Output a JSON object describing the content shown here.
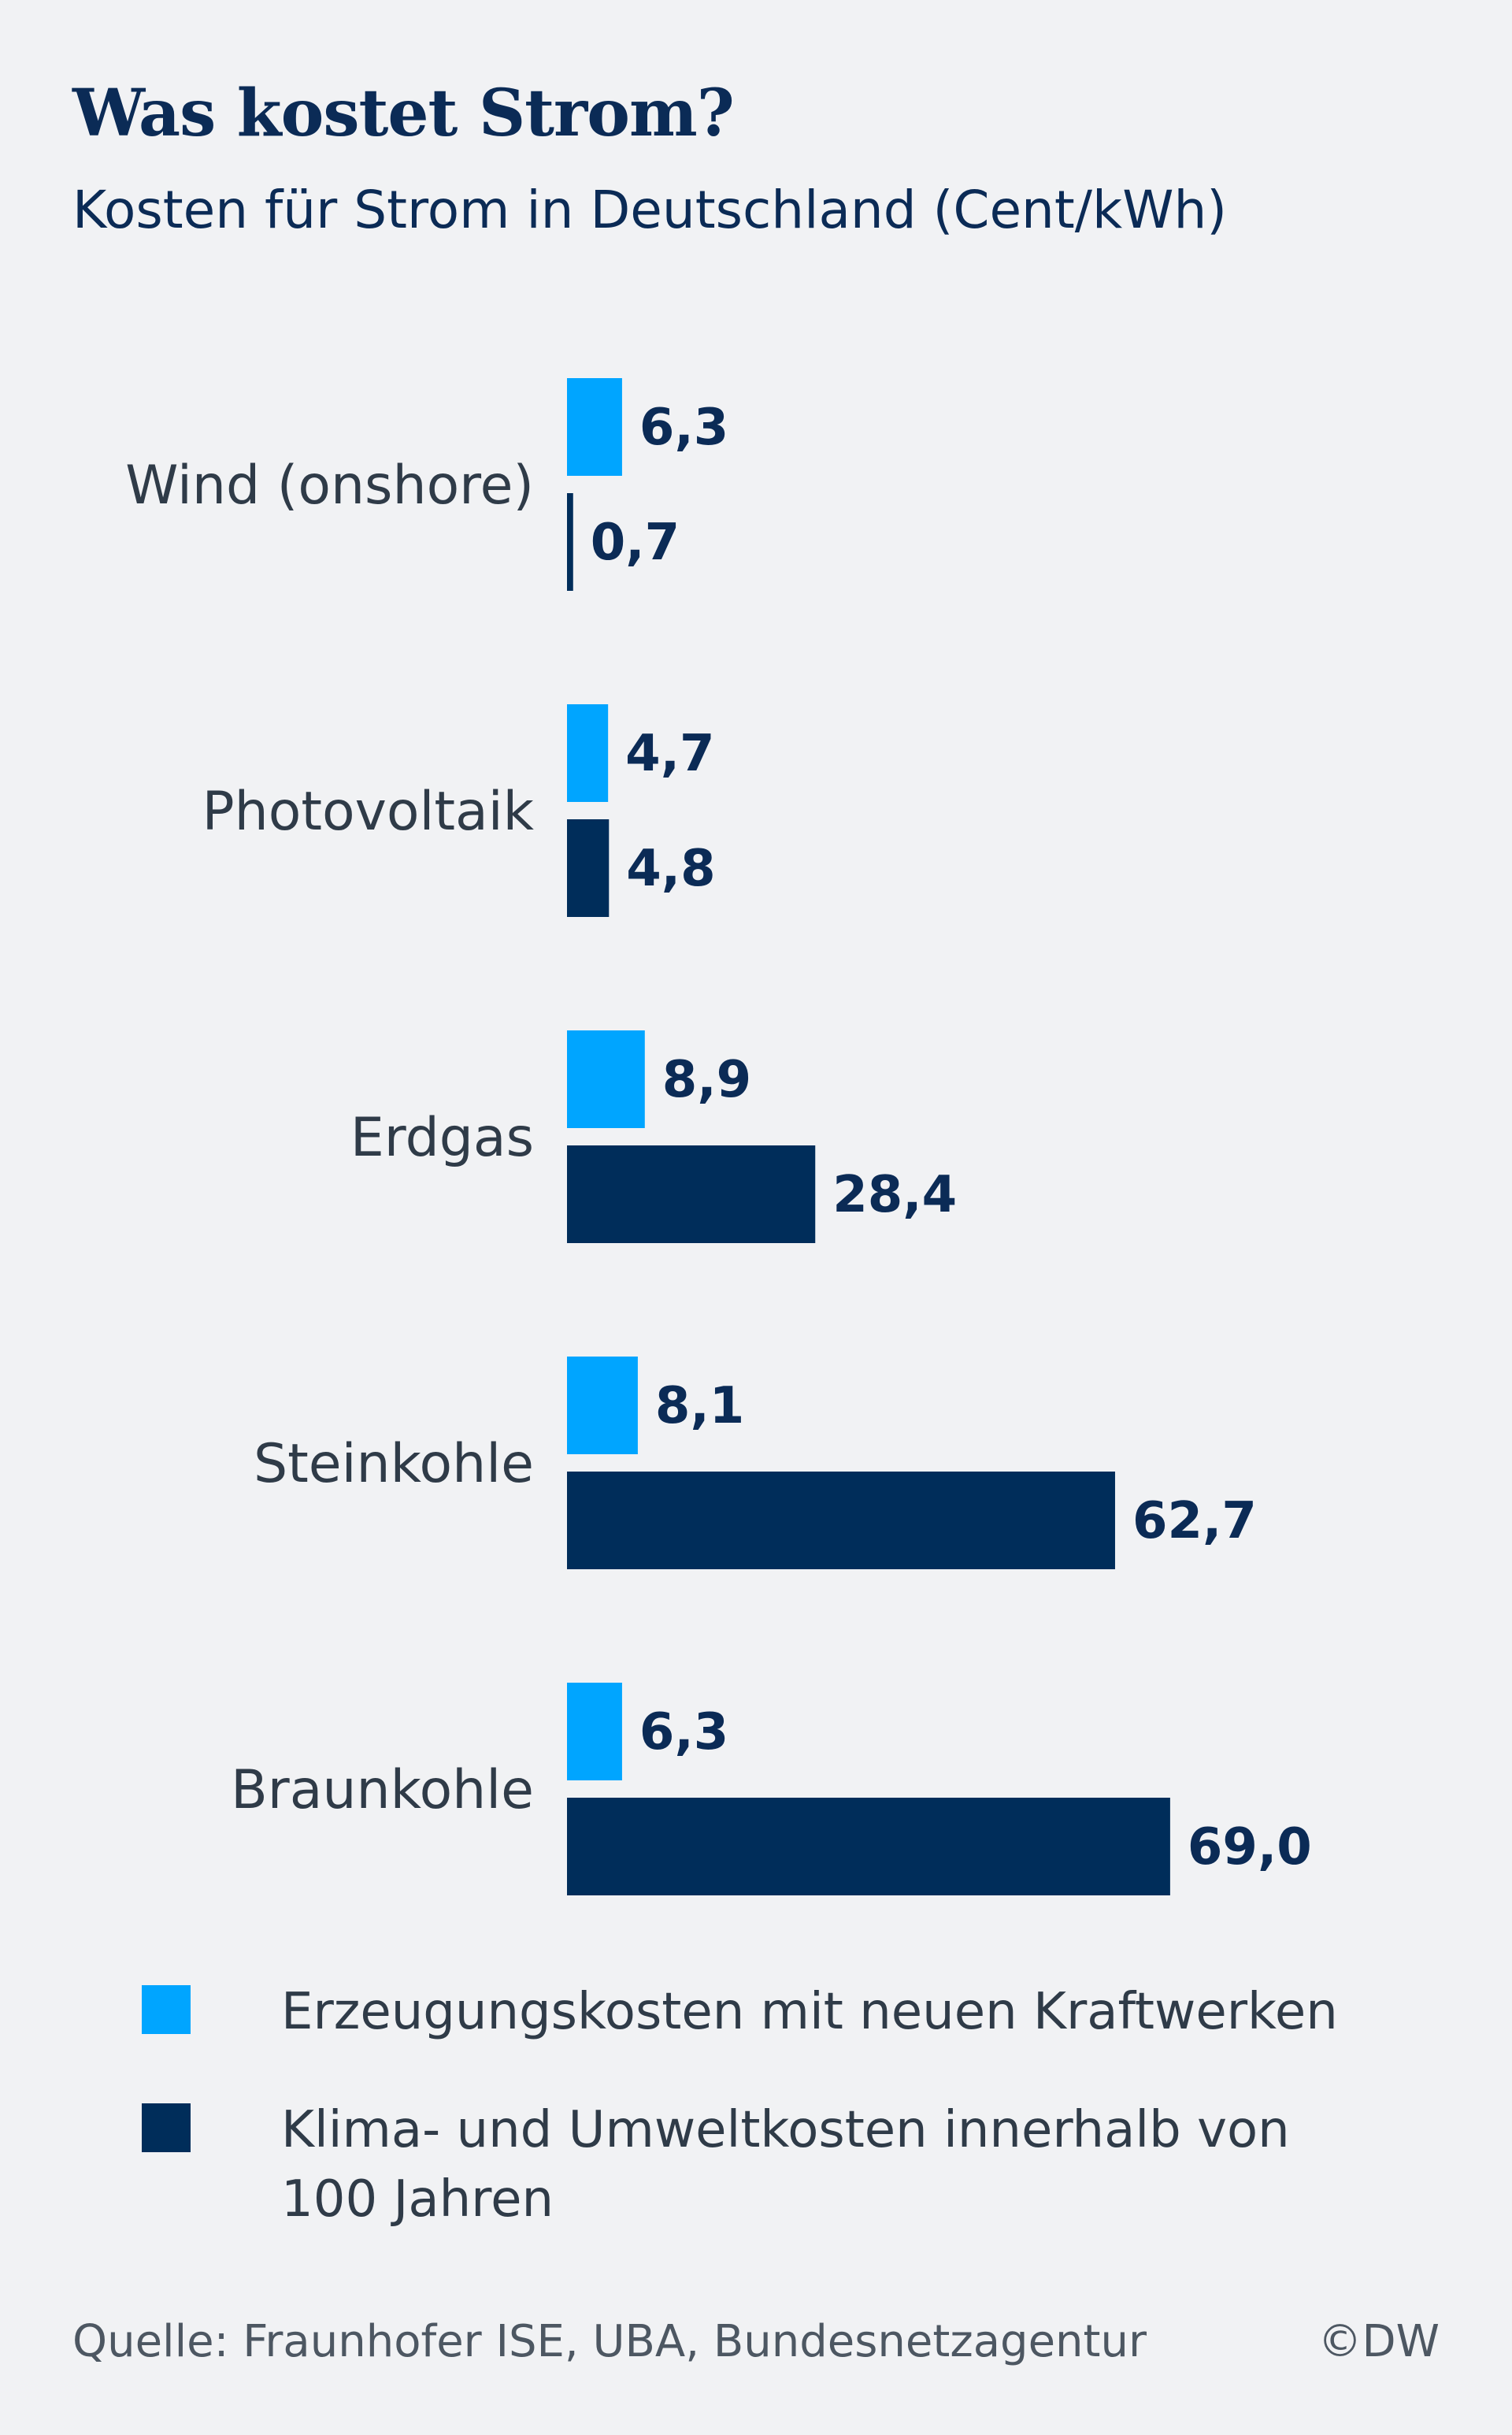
{
  "title": "Was kostet Strom?",
  "subtitle": "Kosten für Strom in Deutschland (Cent/kWh)",
  "colors": {
    "light": "#00a5ff",
    "dark": "#002d5a",
    "text_dark": "#0b2b56",
    "background": "#f1f2f4"
  },
  "chart_data": {
    "type": "bar",
    "orientation": "horizontal",
    "title": "Was kostet Strom?",
    "subtitle": "Kosten für Strom in Deutschland (Cent/kWh)",
    "categories": [
      "Wind (onshore)",
      "Photovoltaik",
      "Erdgas",
      "Steinkohle",
      "Braunkohle"
    ],
    "series": [
      {
        "name": "Erzeugungskosten mit neuen Kraftwerken",
        "color": "#00a5ff",
        "values": [
          6.3,
          4.7,
          8.9,
          8.1,
          6.3
        ],
        "labels": [
          "6,3",
          "4,7",
          "8,9",
          "8,1",
          "6,3"
        ]
      },
      {
        "name": "Klima- und Umweltkosten innerhalb von 100 Jahren",
        "color": "#002d5a",
        "values": [
          0.7,
          4.8,
          28.4,
          62.7,
          69.0
        ],
        "labels": [
          "0,7",
          "4,8",
          "28,4",
          "62,7",
          "69,0"
        ]
      }
    ],
    "xlabel": "",
    "ylabel": "",
    "grid": false,
    "legend_position": "bottom"
  },
  "legend": {
    "items": [
      "Erzeugungskosten mit neuen Kraftwerken",
      "Klima- und Umweltkosten innerhalb von 100 Jahren"
    ]
  },
  "footer": {
    "source": "Quelle: Fraunhofer ISE, UBA, Bundesnetzagentur",
    "copyright": "©DW"
  }
}
